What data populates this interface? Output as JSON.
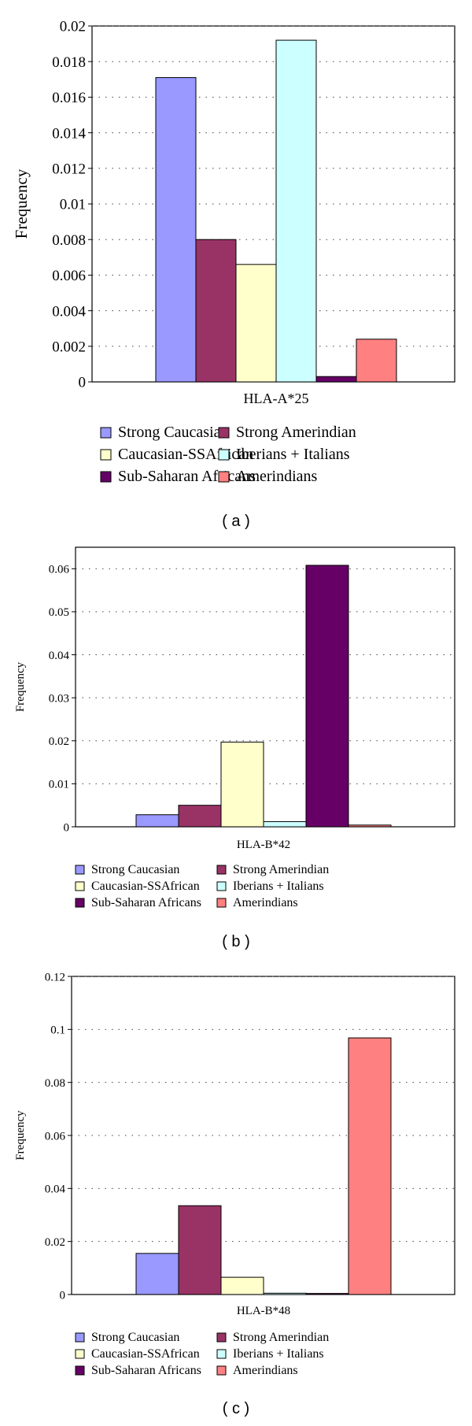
{
  "chart_data": [
    {
      "type": "bar",
      "panel_label": "( a )",
      "categories": [
        "HLA-A*25"
      ],
      "ylabel": "Frequency",
      "ylim": [
        0,
        0.02
      ],
      "yticks": [
        "0",
        "0.002",
        "0.004",
        "0.006",
        "0.008",
        "0.01",
        "0.012",
        "0.014",
        "0.016",
        "0.018",
        "0.02"
      ],
      "grid": true,
      "legend_position": "bottom",
      "series": [
        {
          "name": "Strong Caucasian",
          "color": "#9999ff",
          "values": [
            0.0171
          ]
        },
        {
          "name": "Strong Amerindian",
          "color": "#993366",
          "values": [
            0.008
          ]
        },
        {
          "name": "Caucasian-SSAfrican",
          "color": "#ffffcc",
          "values": [
            0.0066
          ]
        },
        {
          "name": "Iberians + Italians",
          "color": "#ccffff",
          "values": [
            0.0192
          ]
        },
        {
          "name": "Sub-Saharan Africans",
          "color": "#660066",
          "values": [
            0.0003
          ]
        },
        {
          "name": "Amerindians",
          "color": "#ff8080",
          "values": [
            0.0024
          ]
        }
      ]
    },
    {
      "type": "bar",
      "panel_label": "( b )",
      "categories": [
        "HLA-B*42"
      ],
      "ylabel": "Frequency",
      "ylim": [
        0,
        0.065
      ],
      "yticks": [
        "0",
        "0.01",
        "0.02",
        "0.03",
        "0.04",
        "0.05",
        "0.06"
      ],
      "grid": true,
      "legend_position": "bottom",
      "series": [
        {
          "name": "Strong Caucasian",
          "color": "#9999ff",
          "values": [
            0.0028
          ]
        },
        {
          "name": "Strong Amerindian",
          "color": "#993366",
          "values": [
            0.005
          ]
        },
        {
          "name": "Caucasian-SSAfrican",
          "color": "#ffffcc",
          "values": [
            0.0197
          ]
        },
        {
          "name": "Iberians + Italians",
          "color": "#ccffff",
          "values": [
            0.0012
          ]
        },
        {
          "name": "Sub-Saharan Africans",
          "color": "#660066",
          "values": [
            0.0608
          ]
        },
        {
          "name": "Amerindians",
          "color": "#ff8080",
          "values": [
            0.0004
          ]
        }
      ]
    },
    {
      "type": "bar",
      "panel_label": "( c )",
      "categories": [
        "HLA-B*48"
      ],
      "ylabel": "Frequency",
      "ylim": [
        0,
        0.12
      ],
      "yticks": [
        "0",
        "0.02",
        "0.04",
        "0.06",
        "0.08",
        "0.1",
        "0.12"
      ],
      "grid": true,
      "legend_position": "bottom",
      "series": [
        {
          "name": "Strong Caucasian",
          "color": "#9999ff",
          "values": [
            0.0155
          ]
        },
        {
          "name": "Strong Amerindian",
          "color": "#993366",
          "values": [
            0.0335
          ]
        },
        {
          "name": "Caucasian-SSAfrican",
          "color": "#ffffcc",
          "values": [
            0.0065
          ]
        },
        {
          "name": "Iberians + Italians",
          "color": "#ccffff",
          "values": [
            0.0005
          ]
        },
        {
          "name": "Sub-Saharan Africans",
          "color": "#660066",
          "values": [
            0.0004
          ]
        },
        {
          "name": "Amerindians",
          "color": "#ff8080",
          "values": [
            0.0968
          ]
        }
      ]
    }
  ]
}
